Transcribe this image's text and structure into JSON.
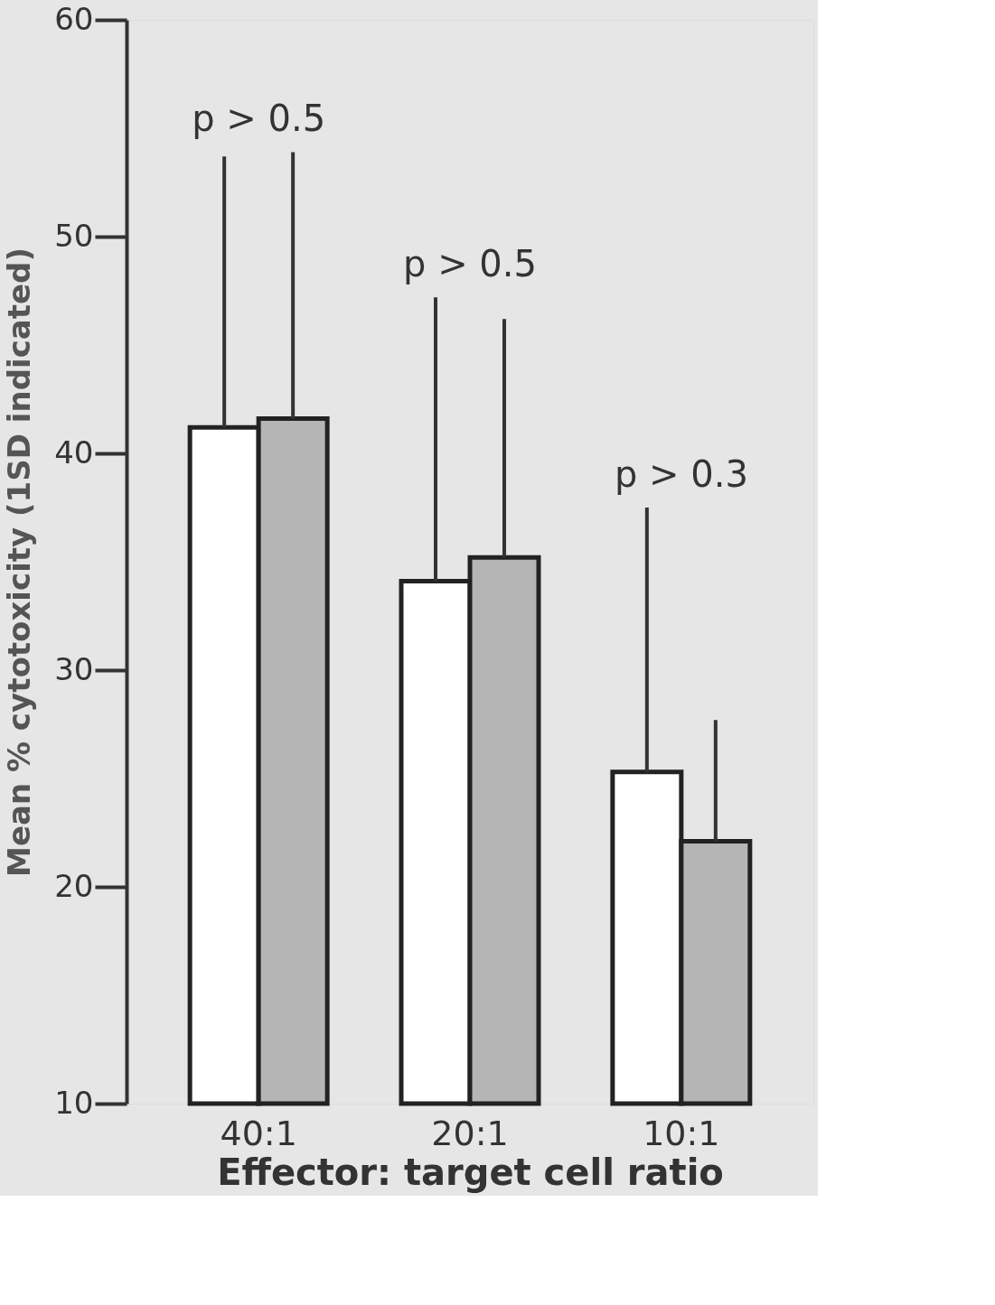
{
  "chart_data": {
    "type": "bar",
    "xlabel": "Effector: target cell ratio",
    "ylabel": "Mean % cytotoxicity (1SD indicated)",
    "categories": [
      "40:1",
      "20:1",
      "10:1"
    ],
    "series": [
      {
        "color": "#ffffff",
        "values": [
          41.2,
          34.1,
          25.3
        ],
        "errors": [
          [
            41.2,
            53.7
          ],
          [
            34.1,
            47.2
          ],
          [
            25.3,
            37.5
          ]
        ]
      },
      {
        "color": "#b5b5b5",
        "values": [
          41.6,
          35.2,
          22.1
        ],
        "errors": [
          [
            41.6,
            53.9
          ],
          [
            35.2,
            46.2
          ],
          [
            22.1,
            27.7
          ]
        ]
      }
    ],
    "ylim": [
      10,
      60
    ],
    "yticks": [
      10,
      20,
      30,
      40,
      50,
      60
    ],
    "grid": false,
    "annotations": [
      "p > 0.5",
      "p > 0.5",
      "p > 0.3"
    ]
  }
}
